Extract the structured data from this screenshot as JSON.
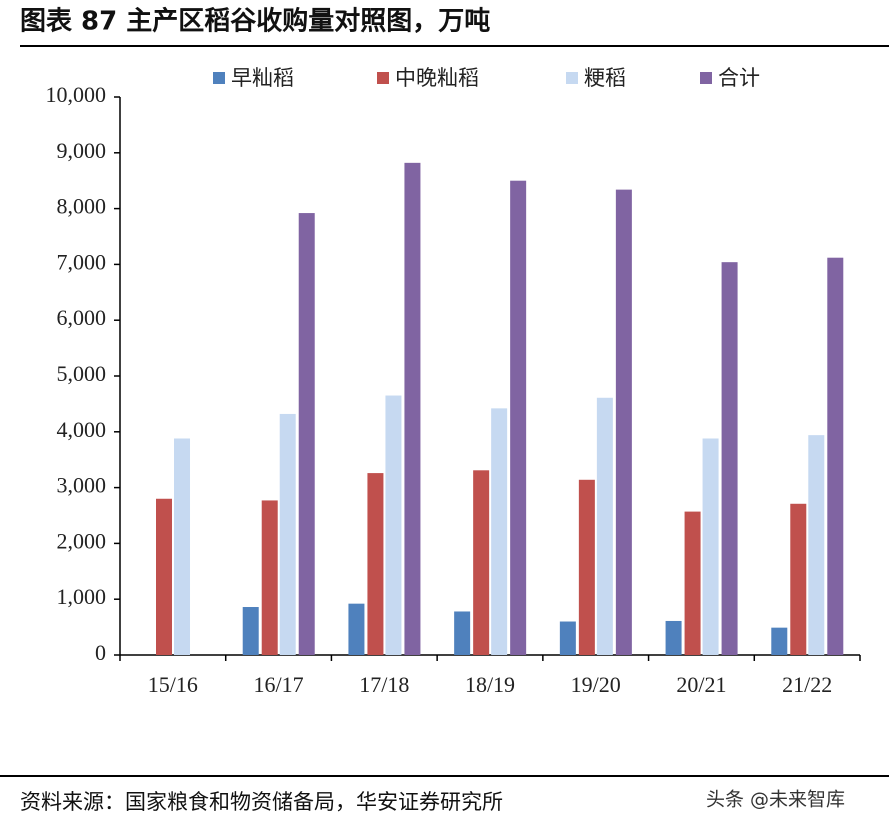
{
  "chart_data": {
    "type": "bar",
    "title": "图表 87  主产区稻谷收购量对照图，万吨",
    "categories": [
      "15/16",
      "16/17",
      "17/18",
      "18/19",
      "19/20",
      "20/21",
      "21/22"
    ],
    "series": [
      {
        "name": "早籼稻",
        "color": "#4f81bd",
        "values": [
          null,
          860,
          920,
          780,
          600,
          610,
          490
        ]
      },
      {
        "name": "中晚籼稻",
        "color": "#c0504d",
        "values": [
          2800,
          2770,
          3260,
          3310,
          3140,
          2570,
          2710
        ]
      },
      {
        "name": "粳稻",
        "color": "#c6d9f1",
        "values": [
          3880,
          4320,
          4650,
          4420,
          4610,
          3880,
          3940
        ]
      },
      {
        "name": "合计",
        "color": "#8064a2",
        "values": [
          null,
          7920,
          8820,
          8500,
          8340,
          7040,
          7120
        ]
      }
    ],
    "ylim": [
      0,
      10000
    ],
    "yticks": [
      0,
      {
        "value": 1000,
        "label": "1,000"
      },
      {
        "value": 2000,
        "label": "2,000"
      },
      {
        "value": 3000,
        "label": "3,000"
      },
      {
        "value": 4000,
        "label": "4,000"
      },
      {
        "value": 5000,
        "label": "5,000"
      },
      {
        "value": 6000,
        "label": "6,000"
      },
      {
        "value": 7000,
        "label": "7,000"
      },
      {
        "value": 8000,
        "label": "8,000"
      },
      {
        "value": 9000,
        "label": "9,000"
      },
      {
        "value": 10000,
        "label": "10,000"
      }
    ],
    "grid": false,
    "legend": "top"
  },
  "source": "资料来源：国家粮食和物资储备局，华安证券研究所",
  "watermark": "头条 @未来智库"
}
